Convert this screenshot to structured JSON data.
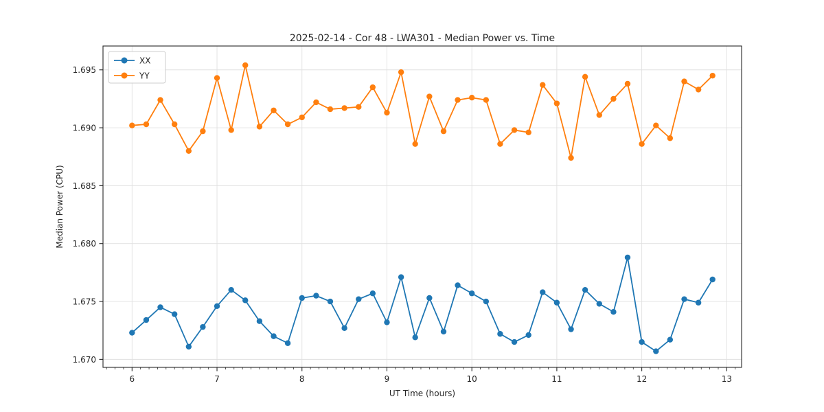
{
  "figure": {
    "title": "2025-02-14 - Cor 48 - LWA301 - Median Power vs. Time",
    "xlabel": "UT Time (hours)",
    "ylabel": "Median Power (CPU)"
  },
  "chart_data": {
    "type": "line",
    "title": "2025-02-14 - Cor 48 - LWA301 - Median Power vs. Time",
    "xlabel": "UT Time (hours)",
    "ylabel": "Median Power (CPU)",
    "xlim": [
      5.658,
      13.175
    ],
    "ylim": [
      1.66931,
      1.69706
    ],
    "xticks": [
      6,
      7,
      8,
      9,
      10,
      11,
      12,
      13
    ],
    "x_minor_tick_step": 0.1,
    "yticks": [
      1.67,
      1.675,
      1.68,
      1.685,
      1.69,
      1.695
    ],
    "ytick_decimals": 3,
    "grid": true,
    "legend_position": "upper left",
    "background_color": "#ffffff",
    "grid_color": "#e0e0e0",
    "spine_color": "#262626",
    "marker": "o",
    "x": [
      6.0,
      6.167,
      6.333,
      6.5,
      6.667,
      6.833,
      7.0,
      7.167,
      7.333,
      7.5,
      7.667,
      7.833,
      8.0,
      8.167,
      8.333,
      8.5,
      8.667,
      8.833,
      9.0,
      9.167,
      9.333,
      9.5,
      9.667,
      9.833,
      10.0,
      10.167,
      10.333,
      10.5,
      10.667,
      10.833,
      11.0,
      11.167,
      11.333,
      11.5,
      11.667,
      11.833,
      12.0,
      12.167,
      12.333,
      12.5,
      12.667,
      12.833
    ],
    "series": [
      {
        "name": "XX",
        "color": "#1f77b4",
        "values": [
          1.6723,
          1.6734,
          1.6745,
          1.6739,
          1.6711,
          1.6728,
          1.6746,
          1.676,
          1.6751,
          1.6733,
          1.672,
          1.6714,
          1.6753,
          1.6755,
          1.675,
          1.6727,
          1.6752,
          1.6757,
          1.6732,
          1.6771,
          1.6719,
          1.6753,
          1.6724,
          1.6764,
          1.6757,
          1.675,
          1.6722,
          1.6715,
          1.6721,
          1.6758,
          1.6749,
          1.6726,
          1.676,
          1.6748,
          1.6741,
          1.6788,
          1.6715,
          1.6707,
          1.6717,
          1.6752,
          1.6749,
          1.6769
        ]
      },
      {
        "name": "YY",
        "color": "#ff7f0e",
        "values": [
          1.6902,
          1.6903,
          1.6924,
          1.6903,
          1.688,
          1.6897,
          1.6943,
          1.6898,
          1.6954,
          1.6901,
          1.6915,
          1.6903,
          1.6909,
          1.6922,
          1.6916,
          1.6917,
          1.6918,
          1.6935,
          1.6913,
          1.6948,
          1.6886,
          1.6927,
          1.6897,
          1.6924,
          1.6926,
          1.6924,
          1.6886,
          1.6898,
          1.6896,
          1.6937,
          1.6921,
          1.6874,
          1.6944,
          1.6911,
          1.6925,
          1.6938,
          1.6886,
          1.6902,
          1.6891,
          1.694,
          1.6933,
          1.6945
        ]
      }
    ]
  }
}
